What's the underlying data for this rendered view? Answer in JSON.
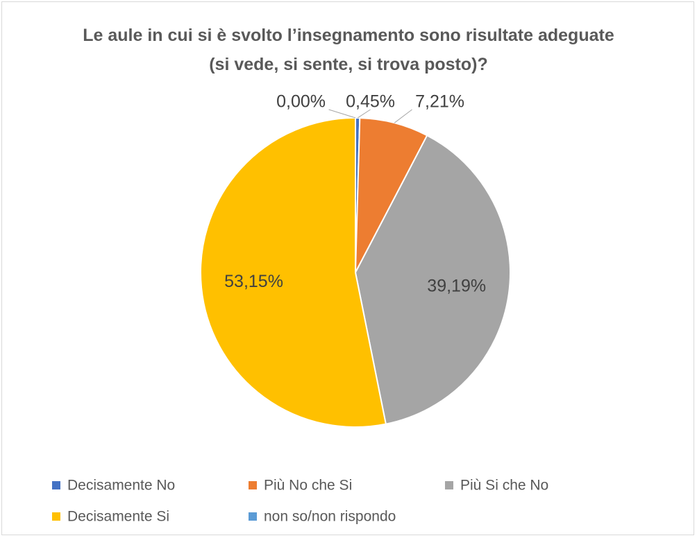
{
  "chart_data": {
    "type": "pie",
    "title": "Le aule in cui si è svolto l’insegnamento sono risultate adeguate (si vede, si sente, si trova posto)?",
    "categories": [
      "Decisamente No",
      "Più No che Si",
      "Più Si che No",
      "Decisamente Si",
      "non so/non rispondo"
    ],
    "values": [
      0.45,
      7.21,
      39.19,
      53.15,
      0.0
    ],
    "value_labels": [
      "0,45%",
      "7,21%",
      "39,19%",
      "53,15%",
      "0,00%"
    ],
    "colors": [
      "#4472c4",
      "#ed7d31",
      "#a5a5a5",
      "#ffc000",
      "#5b9bd5"
    ],
    "legend": "bottom"
  }
}
